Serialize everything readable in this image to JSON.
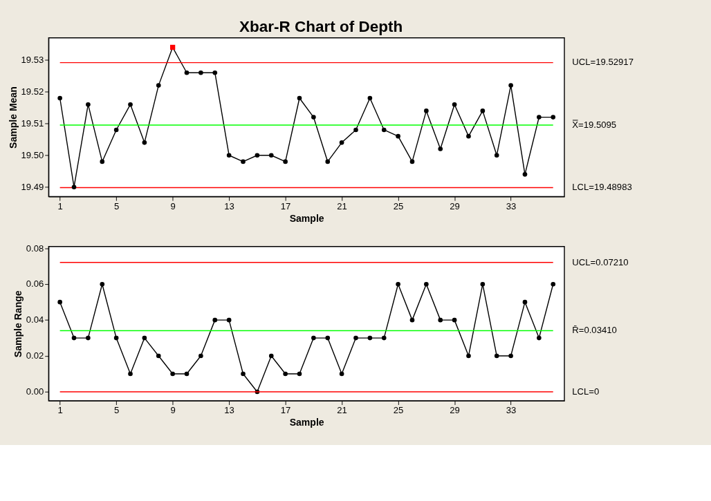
{
  "chart_data": [
    {
      "type": "line",
      "title": "Xbar-R Chart of Depth",
      "xlabel": "Sample",
      "ylabel": "Sample Mean",
      "grid": false,
      "xlim": [
        0.2,
        36.8
      ],
      "xticks": [
        1,
        5,
        9,
        13,
        17,
        21,
        25,
        29,
        33
      ],
      "ylim": [
        19.487,
        19.537
      ],
      "yticks": [
        {
          "value": 19.49,
          "label": "19.49"
        },
        {
          "value": 19.5,
          "label": "19.50"
        },
        {
          "value": 19.51,
          "label": "19.51"
        },
        {
          "value": 19.52,
          "label": "19.52"
        },
        {
          "value": 19.53,
          "label": "19.53"
        }
      ],
      "x": [
        1,
        2,
        3,
        4,
        5,
        6,
        7,
        8,
        9,
        10,
        11,
        12,
        13,
        14,
        15,
        16,
        17,
        18,
        19,
        20,
        21,
        22,
        23,
        24,
        25,
        26,
        27,
        28,
        29,
        30,
        31,
        32,
        33,
        34,
        35,
        36
      ],
      "series": [
        {
          "type": "line",
          "color": "#000000",
          "marker": "none",
          "values": [
            19.518,
            19.49,
            19.516,
            19.498,
            19.508,
            19.516,
            19.504,
            19.522,
            19.534,
            19.526,
            19.526,
            19.526,
            19.5,
            19.498,
            19.5,
            19.5,
            19.498,
            19.518,
            19.512,
            19.498,
            19.504,
            19.508,
            19.518,
            19.508,
            19.506,
            19.498,
            19.514,
            19.502,
            19.516,
            19.506,
            19.514,
            19.5,
            19.522,
            19.494,
            19.512,
            19.512
          ]
        },
        {
          "type": "scatter",
          "color": "#000000",
          "marker": "circle",
          "values": [
            19.518,
            19.49,
            19.516,
            19.498,
            19.508,
            19.516,
            19.504,
            19.522,
            null,
            19.526,
            19.526,
            19.526,
            19.5,
            19.498,
            19.5,
            19.5,
            19.498,
            19.518,
            19.512,
            19.498,
            19.504,
            19.508,
            19.518,
            19.508,
            19.506,
            19.498,
            19.514,
            19.502,
            19.516,
            19.506,
            19.514,
            19.5,
            19.522,
            19.494,
            19.512,
            19.512
          ]
        },
        {
          "type": "scatter",
          "color": "#ff0000",
          "marker": "square",
          "x": [
            9
          ],
          "values": [
            19.534
          ]
        }
      ],
      "ref_lines": [
        {
          "axis": "y",
          "value": 19.52917,
          "label": "UCL=19.52917",
          "color": "#ff0000"
        },
        {
          "axis": "y",
          "value": 19.5095,
          "label": "X̿=19.5095",
          "color": "#00ff00"
        },
        {
          "axis": "y",
          "value": 19.48983,
          "label": "LCL=19.48983",
          "color": "#ff0000"
        }
      ]
    },
    {
      "type": "line",
      "xlabel": "Sample",
      "ylabel": "Sample Range",
      "grid": false,
      "xlim": [
        0.2,
        36.8
      ],
      "xticks": [
        1,
        5,
        9,
        13,
        17,
        21,
        25,
        29,
        33
      ],
      "ylim": [
        -0.005,
        0.081
      ],
      "yticks": [
        {
          "value": 0,
          "label": "0.00"
        },
        {
          "value": 0.02,
          "label": "0.02"
        },
        {
          "value": 0.04,
          "label": "0.04"
        },
        {
          "value": 0.06,
          "label": "0.06"
        },
        {
          "value": 0.08,
          "label": "0.08"
        }
      ],
      "x": [
        1,
        2,
        3,
        4,
        5,
        6,
        7,
        8,
        9,
        10,
        11,
        12,
        13,
        14,
        15,
        16,
        17,
        18,
        19,
        20,
        21,
        22,
        23,
        24,
        25,
        26,
        27,
        28,
        29,
        30,
        31,
        32,
        33,
        34,
        35,
        36
      ],
      "series": [
        {
          "type": "line",
          "color": "#000000",
          "marker": "circle",
          "values": [
            0.05,
            0.03,
            0.03,
            0.06,
            0.03,
            0.01,
            0.03,
            0.02,
            0.01,
            0.01,
            0.02,
            0.04,
            0.04,
            0.01,
            0.0,
            0.02,
            0.01,
            0.01,
            0.03,
            0.03,
            0.01,
            0.03,
            0.03,
            0.03,
            0.06,
            0.04,
            0.06,
            0.04,
            0.04,
            0.02,
            0.06,
            0.02,
            0.02,
            0.05,
            0.03,
            0.06
          ]
        }
      ],
      "ref_lines": [
        {
          "axis": "y",
          "value": 0.0721,
          "label": "UCL=0.07210",
          "color": "#ff0000"
        },
        {
          "axis": "y",
          "value": 0.0341,
          "label": "R̄=0.03410",
          "color": "#00ff00"
        },
        {
          "axis": "y",
          "value": 0,
          "label": "LCL=0",
          "color": "#ff0000"
        }
      ]
    }
  ]
}
